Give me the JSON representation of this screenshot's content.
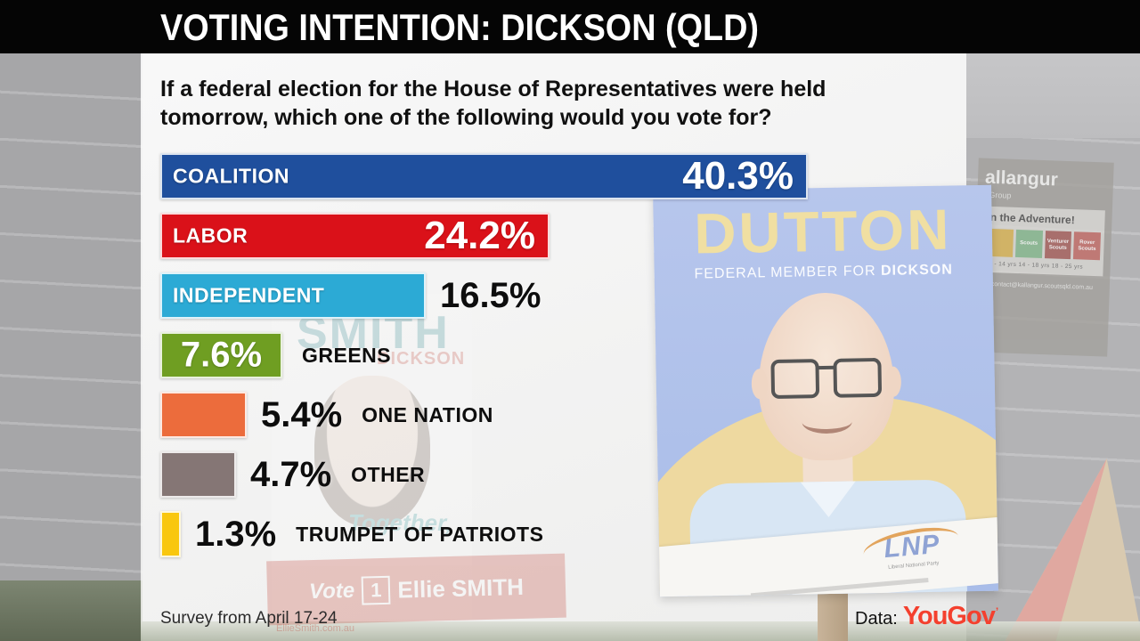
{
  "header": {
    "title": "VOTING INTENTION: DICKSON (QLD)"
  },
  "question": {
    "text": "If a federal election for the House of Representatives were held tomorrow, which one of the following would you vote for?"
  },
  "chart_data": {
    "type": "bar",
    "orientation": "horizontal",
    "title": "VOTING INTENTION: DICKSON (QLD)",
    "subtitle": "If a federal election for the House of Representatives were held tomorrow, which one of the following would you vote for?",
    "categories": [
      "COALITION",
      "LABOR",
      "INDEPENDENT",
      "GREENS",
      "ONE NATION",
      "OTHER",
      "TRUMPET OF PATRIOTS"
    ],
    "values": [
      40.3,
      24.2,
      16.5,
      7.6,
      5.4,
      4.7,
      1.3
    ],
    "value_labels": [
      "40.3%",
      "24.2%",
      "16.5%",
      "7.6%",
      "5.4%",
      "4.7%",
      "1.3%"
    ],
    "colors": [
      "#1f4f9d",
      "#da1119",
      "#2caad5",
      "#6f9e22",
      "#ec6c3c",
      "#857675",
      "#f9c70e"
    ],
    "xlim": [
      0,
      40.3
    ],
    "grid": false,
    "legend": false,
    "source": "YouGov",
    "note": "Survey from April 17-24"
  },
  "footer": {
    "survey_note": "Survey from April 17-24",
    "source_label": "Data:",
    "source_name": "YouGov",
    "source_mark": "’"
  },
  "background": {
    "dutton_poster": {
      "name": "DUTTON",
      "subtitle_prefix": "FEDERAL MEMBER FOR ",
      "subtitle_bold": "DICKSON",
      "logo_text": "LNP",
      "logo_subtext": "Liberal National Party"
    },
    "scout_sign": {
      "title": "allangur",
      "subtitle": "t Group",
      "banner": "in the Adventure!",
      "squares": [
        "",
        "Scouts",
        "Venturer Scouts",
        "Rover Scouts"
      ],
      "ages": "11 - 14 yrs   14 - 18 yrs   18 - 25 yrs",
      "contact": "contact@kallangur.scoutsqld.com.au"
    },
    "smith_poster": {
      "name": "SMITH",
      "seat": "DICKSON",
      "slogan": "Together,",
      "vote_word": "Vote",
      "vote_number": "1",
      "candidate": "Ellie SMITH",
      "url": "EllieSmith.com.au"
    }
  }
}
